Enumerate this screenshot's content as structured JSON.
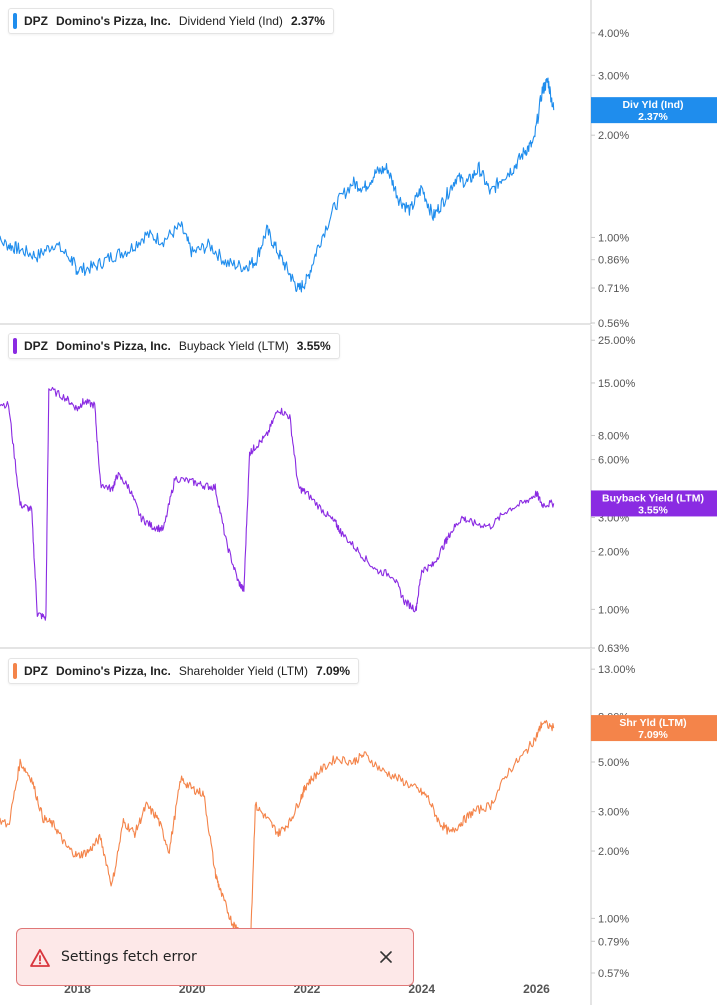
{
  "colors": {
    "dividend": "#1f8ded",
    "buyback": "#8a2be2",
    "shareholder": "#f4844a",
    "axis": "#c8c8c8",
    "toast_bg": "#fde8e8",
    "toast_border": "#e07777",
    "toast_icon": "#d9363e"
  },
  "chart_data": [
    {
      "type": "line",
      "legend": {
        "ticker": "DPZ",
        "company": "Domino's Pizza, Inc.",
        "metric": "Dividend Yield (Ind)",
        "value": "2.37%"
      },
      "y_scale": "log",
      "ylim": [
        0.56,
        5.0
      ],
      "y_ticks": [
        "4.00%",
        "3.00%",
        "2.00%",
        "1.00%",
        "0.86%",
        "0.71%",
        "0.56%"
      ],
      "y_tick_values": [
        4.0,
        3.0,
        2.0,
        1.0,
        0.86,
        0.71,
        0.56
      ],
      "current_label": {
        "line1": "Div Yld (Ind)",
        "line2": "2.37%",
        "value": 2.37
      },
      "series": [
        {
          "x": [
            2016.5,
            2016.8,
            2017.0,
            2017.3,
            2017.6,
            2017.9,
            2018.0,
            2018.3,
            2018.6,
            2018.9,
            2019.2,
            2019.5,
            2019.8,
            2020.0,
            2020.3,
            2020.6,
            2020.9,
            2021.1,
            2021.3,
            2021.5,
            2021.7,
            2021.85,
            2022.0,
            2022.2,
            2022.5,
            2022.8,
            2023.0,
            2023.2,
            2023.4,
            2023.6,
            2023.8,
            2024.0,
            2024.2,
            2024.4,
            2024.6,
            2024.8,
            2025.0,
            2025.2,
            2025.4,
            2025.6,
            2025.8,
            2025.95,
            2026.1,
            2026.2,
            2026.3
          ],
          "y": [
            1.0,
            0.95,
            0.92,
            0.88,
            0.96,
            0.86,
            0.8,
            0.82,
            0.88,
            0.92,
            1.02,
            0.98,
            1.08,
            0.9,
            0.95,
            0.84,
            0.82,
            0.85,
            1.05,
            0.9,
            0.78,
            0.7,
            0.75,
            0.95,
            1.25,
            1.45,
            1.4,
            1.55,
            1.6,
            1.3,
            1.2,
            1.4,
            1.15,
            1.3,
            1.5,
            1.45,
            1.6,
            1.35,
            1.5,
            1.6,
            1.8,
            1.9,
            2.7,
            2.9,
            2.37
          ]
        }
      ]
    },
    {
      "type": "line",
      "legend": {
        "ticker": "DPZ",
        "company": "Domino's Pizza, Inc.",
        "metric": "Buyback Yield (LTM)",
        "value": "3.55%"
      },
      "y_scale": "log",
      "ylim": [
        0.63,
        30.0
      ],
      "y_ticks": [
        "25.00%",
        "15.00%",
        "8.00%",
        "6.00%",
        "3.00%",
        "2.00%",
        "1.00%",
        "0.63%"
      ],
      "y_tick_values": [
        25.0,
        15.0,
        8.0,
        6.0,
        3.0,
        2.0,
        1.0,
        0.63
      ],
      "current_label": {
        "line1": "Buyback Yield (LTM)",
        "line2": "3.55%",
        "value": 3.55
      },
      "series": [
        {
          "x": [
            2016.5,
            2016.8,
            2017.0,
            2017.2,
            2017.3,
            2017.45,
            2017.5,
            2017.8,
            2018.0,
            2018.1,
            2018.3,
            2018.4,
            2018.6,
            2018.7,
            2018.9,
            2019.1,
            2019.3,
            2019.5,
            2019.7,
            2020.0,
            2020.2,
            2020.4,
            2020.6,
            2020.8,
            2020.9,
            2021.0,
            2021.1,
            2021.3,
            2021.5,
            2021.7,
            2021.85,
            2022.0,
            2022.3,
            2022.5,
            2022.6,
            2022.9,
            2023.2,
            2023.5,
            2023.7,
            2023.9,
            2024.0,
            2024.2,
            2024.4,
            2024.5,
            2024.7,
            2024.9,
            2025.2,
            2025.5,
            2025.8,
            2026.0,
            2026.1,
            2026.3
          ],
          "y": [
            12.0,
            11.5,
            3.5,
            3.3,
            0.95,
            0.9,
            14.0,
            12.5,
            11.0,
            12.0,
            11.5,
            4.5,
            4.2,
            5.0,
            4.3,
            3.0,
            2.7,
            2.6,
            4.8,
            4.6,
            4.4,
            4.3,
            2.2,
            1.4,
            1.25,
            6.5,
            7.0,
            8.0,
            11.0,
            10.0,
            4.3,
            4.0,
            3.2,
            2.8,
            2.5,
            2.0,
            1.6,
            1.5,
            1.1,
            1.0,
            1.6,
            1.7,
            2.2,
            2.5,
            3.0,
            2.8,
            2.7,
            3.3,
            3.6,
            4.0,
            3.5,
            3.55
          ]
        }
      ]
    },
    {
      "type": "line",
      "legend": {
        "ticker": "DPZ",
        "company": "Domino's Pizza, Inc.",
        "metric": "Shareholder Yield (LTM)",
        "value": "7.09%"
      },
      "y_scale": "log",
      "ylim": [
        0.57,
        16.0
      ],
      "y_ticks": [
        "13.00%",
        "8.00%",
        "5.00%",
        "3.00%",
        "2.00%",
        "1.00%",
        "0.79%",
        "0.57%"
      ],
      "y_tick_values": [
        13.0,
        8.0,
        5.0,
        3.0,
        2.0,
        1.0,
        0.79,
        0.57
      ],
      "x_ticks": [
        "2018",
        "2020",
        "2022",
        "2024",
        "2026"
      ],
      "x_tick_values": [
        2018,
        2020,
        2022,
        2024,
        2026
      ],
      "xlim": [
        2016.65,
        2026.95
      ],
      "current_label": {
        "line1": "Shr Yld (LTM)",
        "line2": "7.09%",
        "value": 7.09
      },
      "series": [
        {
          "x": [
            2016.5,
            2016.8,
            2017.0,
            2017.2,
            2017.4,
            2017.6,
            2017.8,
            2018.0,
            2018.2,
            2018.4,
            2018.6,
            2018.8,
            2019.0,
            2019.2,
            2019.4,
            2019.6,
            2019.8,
            2020.0,
            2020.2,
            2020.4,
            2020.5,
            2020.7,
            2020.8,
            2020.9,
            2021.0,
            2021.1,
            2021.3,
            2021.5,
            2021.7,
            2021.9,
            2022.0,
            2022.2,
            2022.5,
            2022.8,
            2023.0,
            2023.3,
            2023.6,
            2023.9,
            2024.1,
            2024.3,
            2024.5,
            2024.7,
            2024.9,
            2025.2,
            2025.5,
            2025.8,
            2026.0,
            2026.1,
            2026.3
          ],
          "y": [
            2.9,
            2.6,
            5.0,
            4.2,
            2.8,
            2.6,
            2.1,
            1.9,
            2.0,
            2.3,
            1.4,
            2.7,
            2.4,
            3.2,
            2.8,
            2.0,
            4.2,
            3.8,
            3.6,
            1.6,
            1.3,
            0.95,
            0.9,
            0.7,
            0.6,
            3.2,
            2.8,
            2.4,
            2.7,
            3.5,
            4.0,
            4.5,
            5.2,
            5.0,
            5.4,
            4.6,
            4.2,
            3.8,
            3.5,
            2.7,
            2.4,
            2.7,
            3.0,
            3.2,
            4.5,
            5.5,
            6.5,
            7.5,
            7.09
          ]
        }
      ]
    }
  ],
  "toast": {
    "message": "Settings fetch error",
    "icon": "warning-triangle-icon",
    "close_icon": "close-icon"
  }
}
